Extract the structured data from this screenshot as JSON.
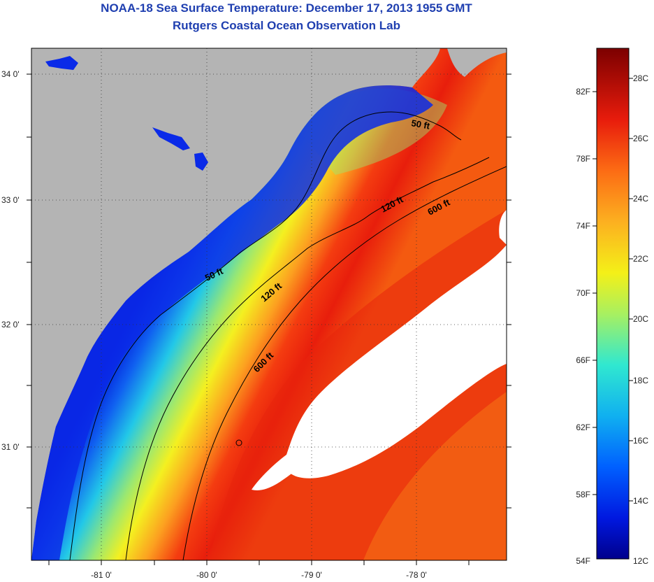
{
  "title": "NOAA-18 Sea Surface Temperature:  December 17, 2013 1955 GMT",
  "subtitle": "Rutgers Coastal Ocean Observation Lab",
  "lat_ticks": [
    {
      "value": 34,
      "label": "34 0'"
    },
    {
      "value": 33,
      "label": "33 0'"
    },
    {
      "value": 32,
      "label": "32 0'"
    },
    {
      "value": 31,
      "label": "31 0'"
    }
  ],
  "lon_ticks": [
    {
      "value": -81,
      "label": "-81 0'"
    },
    {
      "value": -80,
      "label": "-80 0'"
    },
    {
      "value": -79,
      "label": "-79 0'"
    },
    {
      "value": -78,
      "label": "-78 0'"
    }
  ],
  "contours": [
    {
      "label": "50 ft"
    },
    {
      "label": "50 ft"
    },
    {
      "label": "120 ft"
    },
    {
      "label": "120 ft"
    },
    {
      "label": "600 ft"
    },
    {
      "label": "600 ft"
    }
  ],
  "colorbar": {
    "fahrenheit": [
      "82F",
      "78F",
      "74F",
      "70F",
      "66F",
      "62F",
      "58F",
      "54F"
    ],
    "celsius": [
      "28C",
      "26C",
      "24C",
      "22C",
      "20C",
      "18C",
      "16C",
      "14C",
      "12C"
    ]
  },
  "colors": {
    "land": "#b4b4b4",
    "cloud": "#ffffff",
    "title": "#1f3fb0"
  }
}
